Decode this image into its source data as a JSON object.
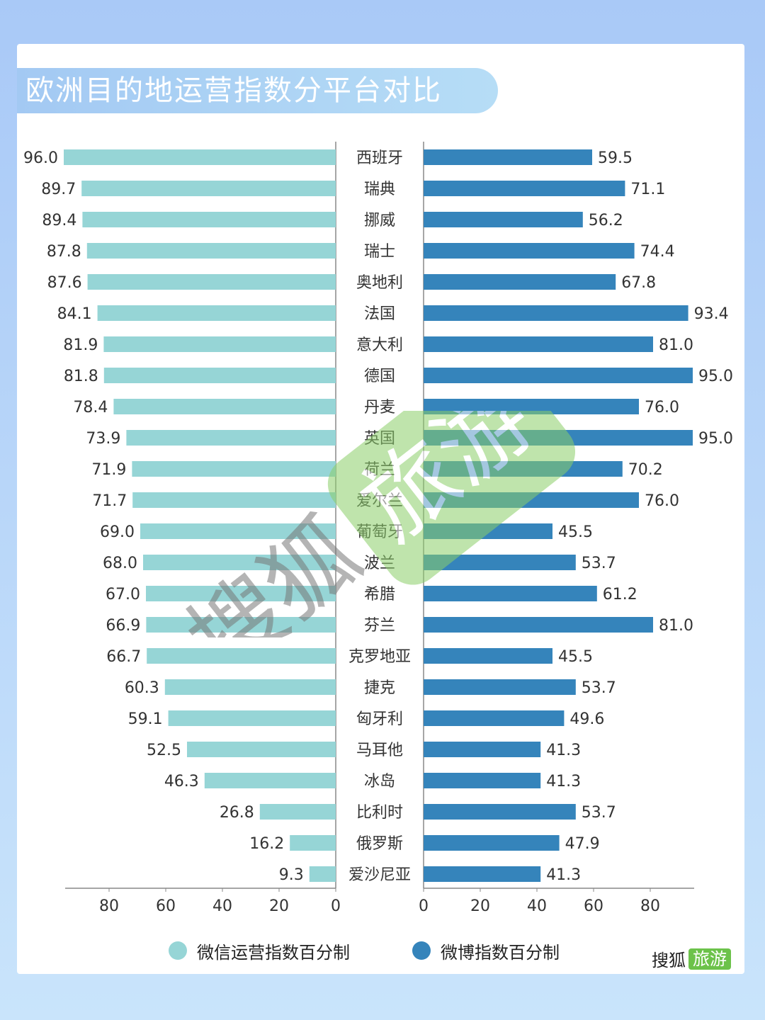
{
  "title": "欧洲目的地运营指数分平台对比",
  "colors": {
    "left": "#96d5d6",
    "right": "#3584bb",
    "axis": "#888888",
    "label": "#333333"
  },
  "legend": {
    "left_label": "微信运营指数百分制",
    "right_label": "微博指数百分制"
  },
  "brand": {
    "text1": "搜狐",
    "text2": "旅游"
  },
  "watermark": {
    "text1": "搜狐",
    "text2": "旅游"
  },
  "chart_data": {
    "type": "bar",
    "orientation": "horizontal-butterfly",
    "categories": [
      "西班牙",
      "瑞典",
      "挪威",
      "瑞士",
      "奥地利",
      "法国",
      "意大利",
      "德国",
      "丹麦",
      "英国",
      "荷兰",
      "爱尔兰",
      "葡萄牙",
      "波兰",
      "希腊",
      "芬兰",
      "克罗地亚",
      "捷克",
      "匈牙利",
      "马耳他",
      "冰岛",
      "比利时",
      "俄罗斯",
      "爱沙尼亚"
    ],
    "series": [
      {
        "name": "微信运营指数百分制",
        "values": [
          96.0,
          89.7,
          89.4,
          87.8,
          87.6,
          84.1,
          81.9,
          81.8,
          78.4,
          73.9,
          71.9,
          71.7,
          69.0,
          68.0,
          67.0,
          66.9,
          66.7,
          60.3,
          59.1,
          52.5,
          46.3,
          26.8,
          16.2,
          9.3
        ]
      },
      {
        "name": "微博指数百分制",
        "values": [
          59.5,
          71.1,
          56.2,
          74.4,
          67.8,
          93.4,
          81.0,
          95.0,
          76.0,
          95.0,
          70.2,
          76.0,
          45.5,
          53.7,
          61.2,
          81.0,
          45.5,
          53.7,
          49.6,
          41.3,
          41.3,
          53.7,
          47.9,
          41.3
        ]
      }
    ],
    "left_ticks": [
      80,
      60,
      40,
      20,
      0
    ],
    "right_ticks": [
      0,
      20,
      40,
      60,
      80
    ],
    "xlim": [
      0,
      95
    ]
  }
}
